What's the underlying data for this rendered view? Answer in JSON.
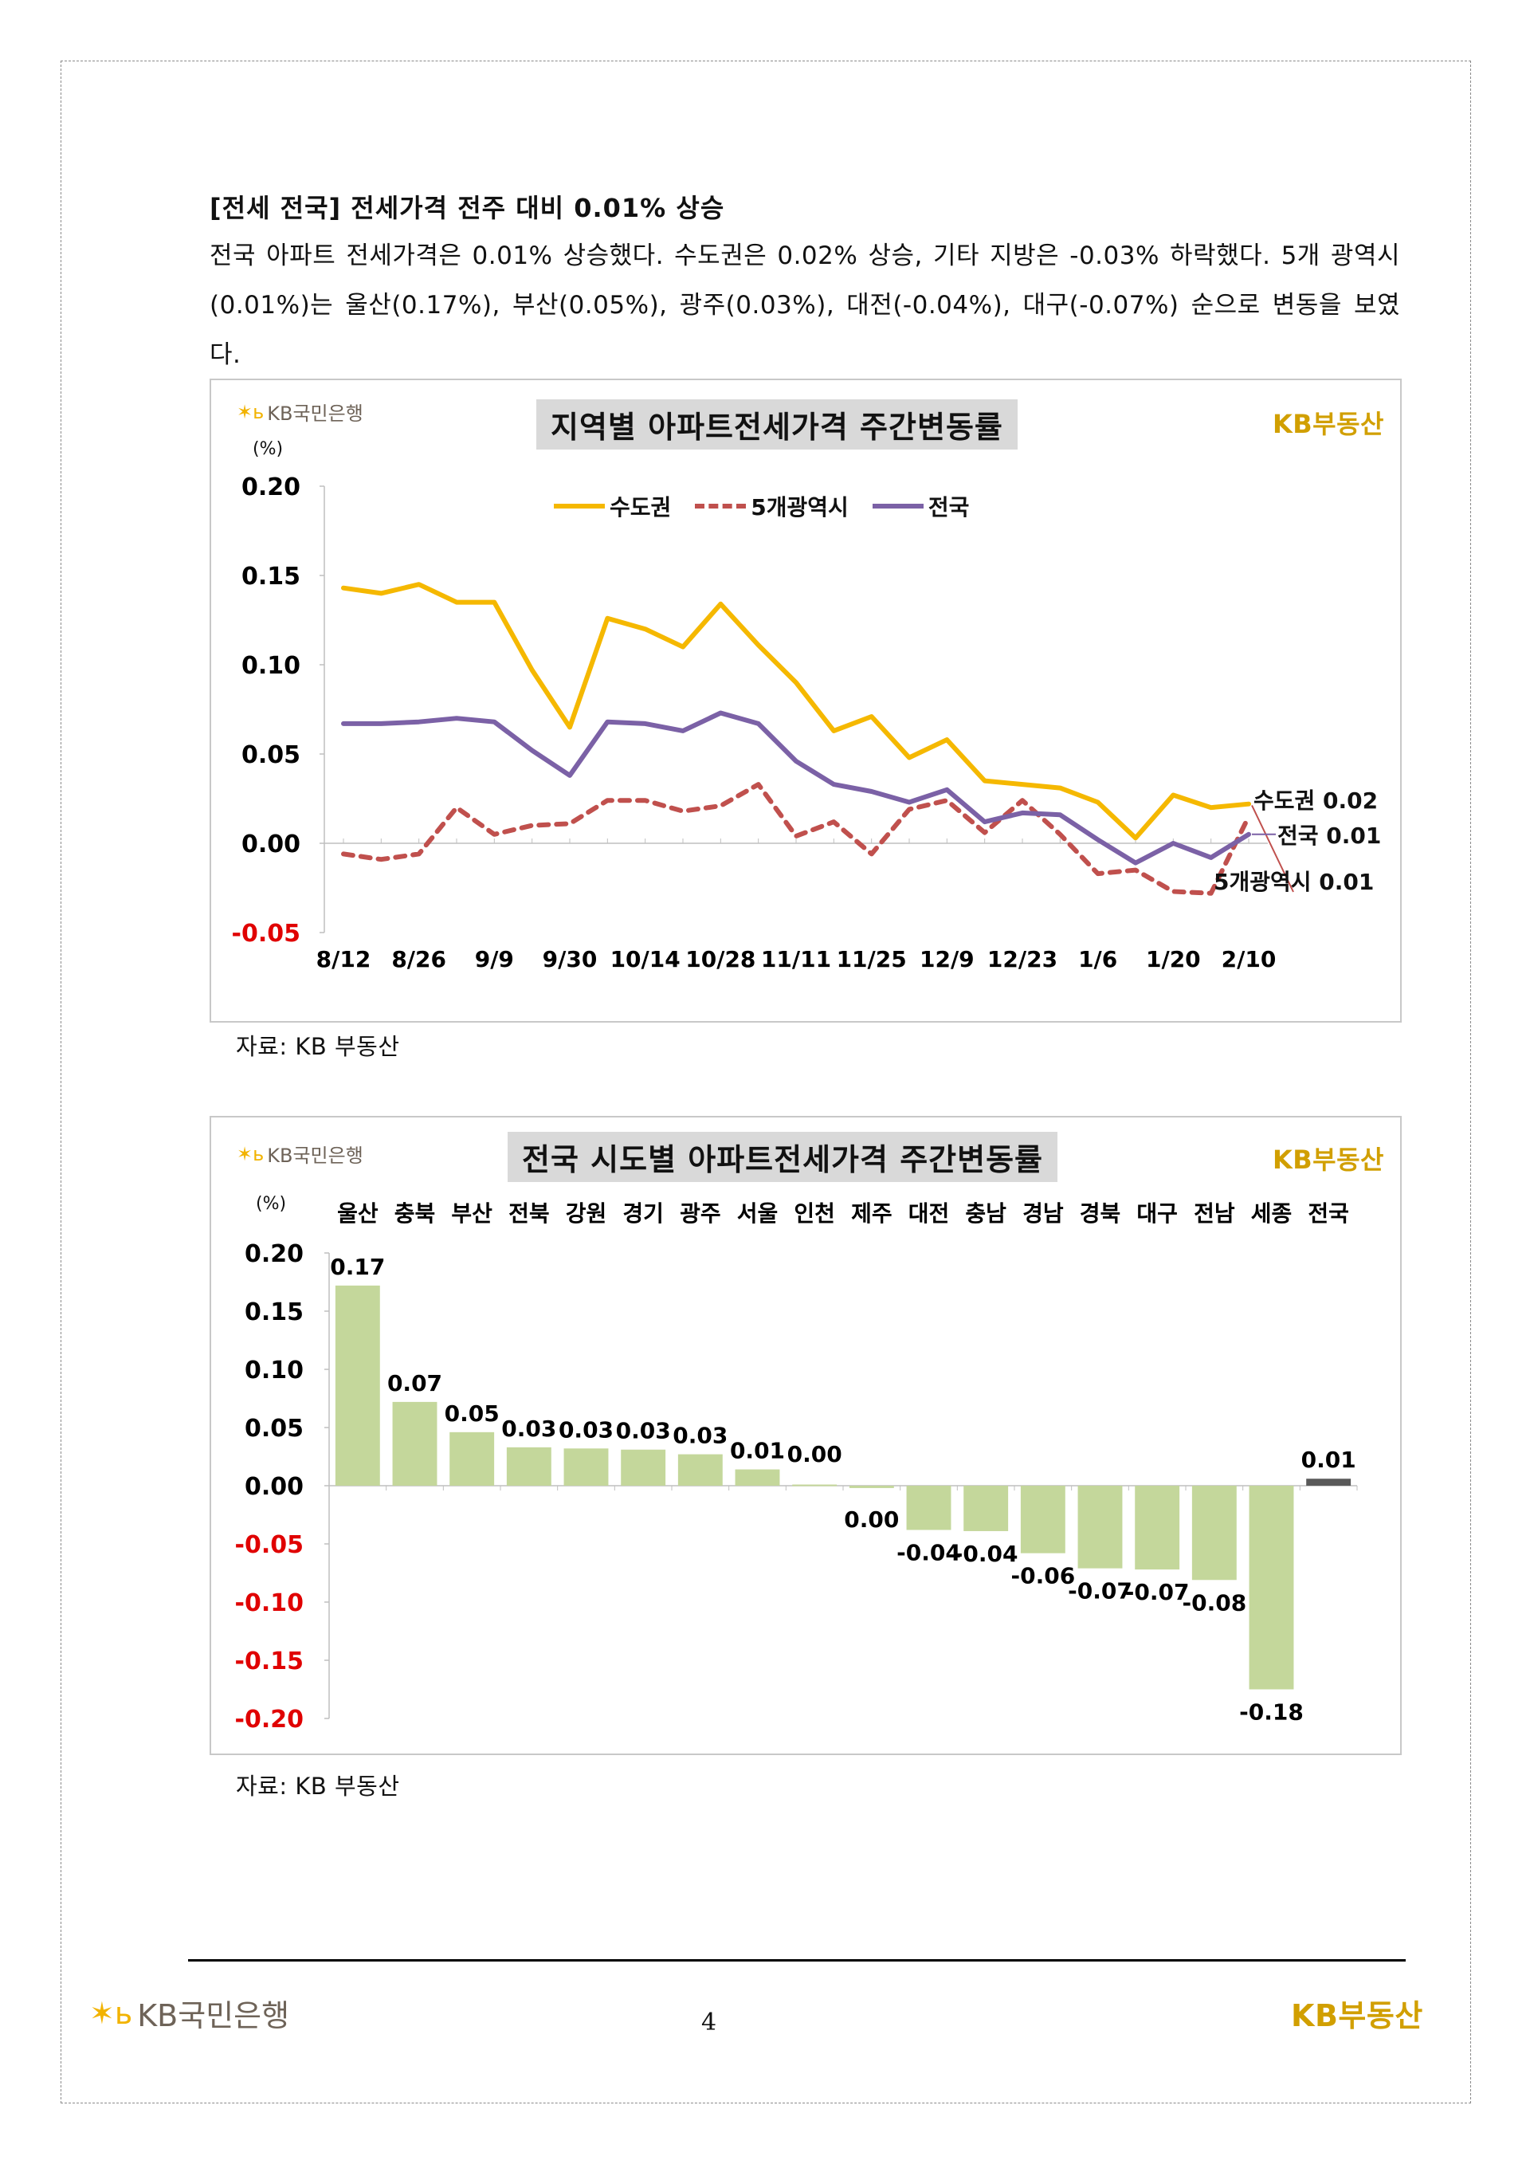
{
  "section": {
    "title": "[전세 전국] 전세가격 전주 대비 0.01% 상승",
    "paragraph": "전국 아파트 전세가격은 0.01% 상승했다. 수도권은 0.02% 상승, 기타 지방은 -0.03% 하락했다. 5개 광역시(0.01%)는 울산(0.17%), 부산(0.05%), 광주(0.03%), 대전(-0.04%), 대구(-0.07%) 순으로 변동을 보였다."
  },
  "logos": {
    "kb_bank": "KB국민은행",
    "kb_realestate": "KB부동산"
  },
  "chart1": {
    "title": "지역별 아파트전세가격 주간변동률",
    "unit": "(%)",
    "source": "자료: KB 부동산",
    "end_labels": [
      "수도권 0.02",
      "전국 0.01",
      "5개광역시 0.01"
    ],
    "y_ticks": [
      "0.20",
      "0.15",
      "0.10",
      "0.05",
      "0.00",
      "-0.05"
    ]
  },
  "chart2": {
    "title": "전국 시도별 아파트전세가격 주간변동률",
    "unit": "(%)",
    "source": "자료: KB 부동산",
    "y_ticks": [
      "0.20",
      "0.15",
      "0.10",
      "0.05",
      "0.00",
      "-0.05",
      "-0.10",
      "-0.15",
      "-0.20"
    ]
  },
  "colors": {
    "capital": "#f5b800",
    "metro5": "#c0504d",
    "national": "#7b61a6",
    "bar": "#c4d79b",
    "bar_total": "#595959",
    "negative_tick": "#e00000",
    "brand": "#d19f00"
  },
  "footer": {
    "page": "4"
  },
  "chart_data": [
    {
      "type": "line",
      "title": "지역별 아파트전세가격 주간변동률",
      "ylabel": "(%)",
      "ylim": [
        -0.05,
        0.2
      ],
      "x_tick_labels": [
        "8/12",
        "8/26",
        "9/9",
        "9/30",
        "10/14",
        "10/28",
        "11/11",
        "11/25",
        "12/9",
        "12/23",
        "1/6",
        "1/20",
        "2/10"
      ],
      "legend": "top-center",
      "series": [
        {
          "name": "수도권",
          "style": "solid",
          "color": "#f5b800",
          "values": [
            0.143,
            0.14,
            0.145,
            0.135,
            0.135,
            0.097,
            0.065,
            0.126,
            0.12,
            0.11,
            0.134,
            0.111,
            0.09,
            0.063,
            0.071,
            0.048,
            0.058,
            0.035,
            0.033,
            0.031,
            0.023,
            0.003,
            0.027,
            0.02,
            0.022
          ]
        },
        {
          "name": "5개광역시",
          "style": "dashed",
          "color": "#c0504d",
          "values": [
            -0.006,
            -0.009,
            -0.006,
            0.02,
            0.005,
            0.01,
            0.011,
            0.024,
            0.024,
            0.018,
            0.021,
            0.033,
            0.004,
            0.012,
            -0.006,
            0.019,
            0.024,
            0.006,
            0.024,
            0.005,
            -0.017,
            -0.015,
            -0.027,
            -0.028,
            0.015
          ]
        },
        {
          "name": "전국",
          "style": "solid",
          "color": "#7b61a6",
          "values": [
            0.067,
            0.067,
            0.068,
            0.07,
            0.068,
            0.052,
            0.038,
            0.068,
            0.067,
            0.063,
            0.073,
            0.067,
            0.046,
            0.033,
            0.029,
            0.023,
            0.03,
            0.012,
            0.017,
            0.016,
            0.002,
            -0.011,
            0.0,
            -0.008,
            0.005
          ]
        }
      ]
    },
    {
      "type": "bar",
      "title": "전국 시도별 아파트전세가격 주간변동률",
      "ylabel": "(%)",
      "ylim": [
        -0.2,
        0.2
      ],
      "categories": [
        "울산",
        "충북",
        "부산",
        "전북",
        "강원",
        "경기",
        "광주",
        "서울",
        "인천",
        "제주",
        "대전",
        "충남",
        "경남",
        "경북",
        "대구",
        "전남",
        "세종",
        "전국"
      ],
      "values": [
        0.172,
        0.072,
        0.046,
        0.033,
        0.032,
        0.031,
        0.027,
        0.014,
        0.001,
        -0.002,
        -0.038,
        -0.039,
        -0.058,
        -0.071,
        -0.072,
        -0.081,
        -0.175,
        0.006
      ],
      "data_labels": [
        "0.17",
        "0.07",
        "0.05",
        "0.03",
        "0.03",
        "0.03",
        "0.03",
        "0.01",
        "0.00",
        "0.00",
        "-0.04",
        "-0.04",
        "-0.06",
        "-0.07",
        "-0.07",
        "-0.08",
        "-0.18",
        "0.01"
      ]
    }
  ]
}
